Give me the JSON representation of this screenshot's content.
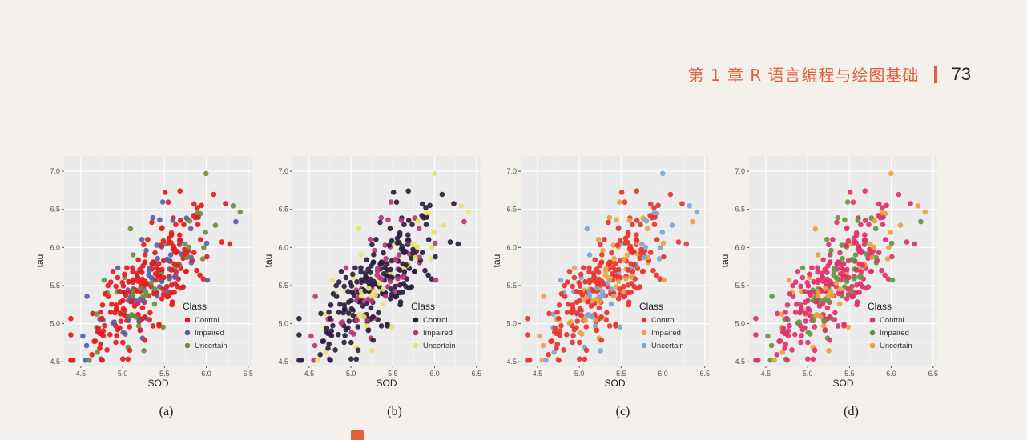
{
  "header": {
    "chapter": "第 1 章   R 语言编程与绘图基础",
    "page_number": "73"
  },
  "colors": {
    "panel_bg": "#ebebeb",
    "grid": "#ffffff",
    "accent": "#e2603c"
  },
  "chart_data": [
    {
      "type": "scatter",
      "panel_label": "(a)",
      "xlabel": "SOD",
      "ylabel": "tau",
      "xlim": [
        4.3,
        6.55
      ],
      "ylim": [
        4.45,
        7.2
      ],
      "xticks": [
        "4.5",
        "5.0",
        "5.5",
        "6.0",
        "6.5"
      ],
      "yticks": [
        "4.5",
        "5.0",
        "5.5",
        "6.0",
        "6.5",
        "7.0"
      ],
      "legend_title": "Class",
      "legend_position": "bottom-right-inside",
      "palette": [
        "#e41a1c",
        "#5b5ea6",
        "#6a8f3a"
      ],
      "series": [
        {
          "name": "Control"
        },
        {
          "name": "Impaired"
        },
        {
          "name": "Uncertain"
        }
      ]
    },
    {
      "type": "scatter",
      "panel_label": "(b)",
      "xlabel": "SOD",
      "ylabel": "tau",
      "xlim": [
        4.3,
        6.55
      ],
      "ylim": [
        4.45,
        7.2
      ],
      "xticks": [
        "4.5",
        "5.0",
        "5.5",
        "6.0",
        "6.5"
      ],
      "yticks": [
        "4.5",
        "5.0",
        "5.5",
        "6.0",
        "6.5",
        "7.0"
      ],
      "legend_title": "Class",
      "legend_position": "bottom-right-inside",
      "palette": [
        "#2d1e3e",
        "#b5367a",
        "#e8e36a"
      ],
      "series": [
        {
          "name": "Control"
        },
        {
          "name": "Impaired"
        },
        {
          "name": "Uncertain"
        }
      ]
    },
    {
      "type": "scatter",
      "panel_label": "(c)",
      "xlabel": "SOD",
      "ylabel": "tau",
      "xlim": [
        4.3,
        6.55
      ],
      "ylim": [
        4.45,
        7.2
      ],
      "xticks": [
        "4.5",
        "5.0",
        "5.5",
        "6.0",
        "6.5"
      ],
      "yticks": [
        "4.5",
        "5.0",
        "5.5",
        "6.0",
        "6.5",
        "7.0"
      ],
      "legend_title": "Class",
      "legend_position": "bottom-right-inside",
      "palette": [
        "#e8332e",
        "#e8a24a",
        "#7ea6d8"
      ],
      "series": [
        {
          "name": "Control"
        },
        {
          "name": "Impaired"
        },
        {
          "name": "Uncertain"
        }
      ]
    },
    {
      "type": "scatter",
      "panel_label": "(d)",
      "xlabel": "SOD",
      "ylabel": "tau",
      "xlim": [
        4.3,
        6.55
      ],
      "ylim": [
        4.45,
        7.2
      ],
      "xticks": [
        "4.5",
        "5.0",
        "5.5",
        "6.0",
        "6.5"
      ],
      "yticks": [
        "4.5",
        "5.0",
        "5.5",
        "6.0",
        "6.5",
        "7.0"
      ],
      "legend_title": "Class",
      "legend_position": "bottom-right-inside",
      "palette": [
        "#e0306a",
        "#5c9a3e",
        "#e8a23c"
      ],
      "series": [
        {
          "name": "Control"
        },
        {
          "name": "Impaired"
        },
        {
          "name": "Uncertain"
        }
      ]
    }
  ]
}
